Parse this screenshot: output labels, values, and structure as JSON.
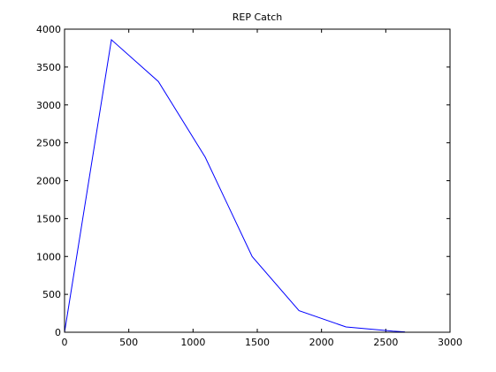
{
  "chart_data": {
    "type": "line",
    "title": "REP Catch",
    "xlabel": "",
    "ylabel": "",
    "xlim": [
      0,
      3000
    ],
    "ylim": [
      0,
      4000
    ],
    "x_ticks": [
      0,
      500,
      1000,
      1500,
      2000,
      2500,
      3000
    ],
    "y_ticks": [
      0,
      500,
      1000,
      1500,
      2000,
      2500,
      3000,
      3500,
      4000
    ],
    "grid": false,
    "series": [
      {
        "color": "#0000ff",
        "x": [
          0,
          365,
          730,
          1095,
          1460,
          1825,
          2190,
          2555,
          2650
        ],
        "y": [
          0,
          3860,
          3310,
          2310,
          1000,
          285,
          70,
          15,
          5
        ]
      }
    ]
  }
}
